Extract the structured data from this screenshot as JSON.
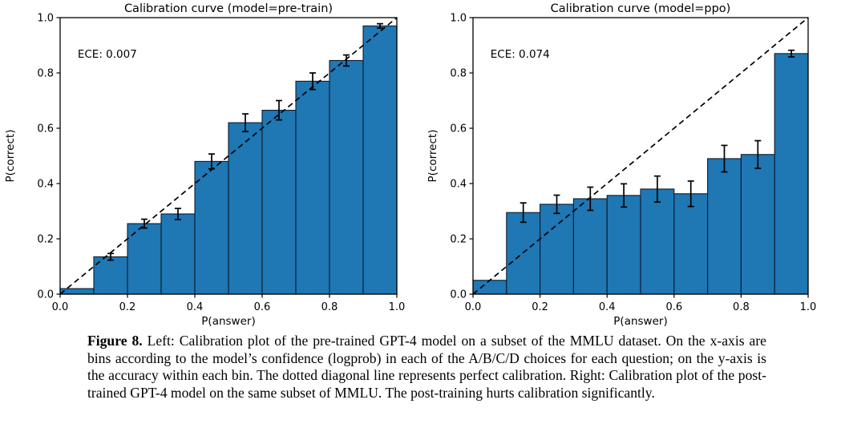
{
  "figure": {
    "caption_label": "Figure 8.",
    "caption_text": "Left: Calibration plot of the pre-trained GPT-4 model on a subset of the MMLU dataset. On the x-axis are bins according to the model’s confidence (logprob) in each of the A/B/C/D choices for each question; on the y-axis is the accuracy within each bin. The dotted diagonal line represents perfect calibration. Right: Calibration plot of the post-trained GPT-4 model on the same subset of MMLU. The post-training hurts calibration significantly."
  },
  "style": {
    "bar_fill": "#1f77b4",
    "bar_edge": "#0b1c2c",
    "line_color": "#000000",
    "text_color": "#000000",
    "background": "#ffffff"
  },
  "chart_data": [
    {
      "type": "bar",
      "title": "Calibration curve (model=pre-train)",
      "annotation": "ECE: 0.007",
      "xlabel": "P(answer)",
      "ylabel": "P(correct)",
      "xlim": [
        0.0,
        1.0
      ],
      "ylim": [
        0.0,
        1.0
      ],
      "xticks": [
        0.0,
        0.2,
        0.4,
        0.6,
        0.8,
        1.0
      ],
      "yticks": [
        0.0,
        0.2,
        0.4,
        0.6,
        0.8,
        1.0
      ],
      "grid": false,
      "legend": "none",
      "diagonal_line": true,
      "bin_width": 0.1,
      "bin_left_edges": [
        0.0,
        0.1,
        0.2,
        0.3,
        0.4,
        0.5,
        0.6,
        0.7,
        0.8,
        0.9
      ],
      "values": [
        0.02,
        0.135,
        0.255,
        0.29,
        0.48,
        0.62,
        0.665,
        0.77,
        0.845,
        0.97
      ],
      "errors": [
        0,
        0.012,
        0.016,
        0.02,
        0.027,
        0.032,
        0.035,
        0.03,
        0.02,
        0.008
      ]
    },
    {
      "type": "bar",
      "title": "Calibration curve (model=ppo)",
      "annotation": "ECE: 0.074",
      "xlabel": "P(answer)",
      "ylabel": "P(correct)",
      "xlim": [
        0.0,
        1.0
      ],
      "ylim": [
        0.0,
        1.0
      ],
      "xticks": [
        0.0,
        0.2,
        0.4,
        0.6,
        0.8,
        1.0
      ],
      "yticks": [
        0.0,
        0.2,
        0.4,
        0.6,
        0.8,
        1.0
      ],
      "grid": false,
      "legend": "none",
      "diagonal_line": true,
      "bin_width": 0.1,
      "bin_left_edges": [
        0.0,
        0.1,
        0.2,
        0.3,
        0.4,
        0.5,
        0.6,
        0.7,
        0.8,
        0.9
      ],
      "values": [
        0.05,
        0.295,
        0.325,
        0.345,
        0.357,
        0.38,
        0.363,
        0.49,
        0.505,
        0.87
      ],
      "errors": [
        0,
        0.035,
        0.033,
        0.042,
        0.042,
        0.047,
        0.046,
        0.048,
        0.05,
        0.012
      ]
    }
  ]
}
